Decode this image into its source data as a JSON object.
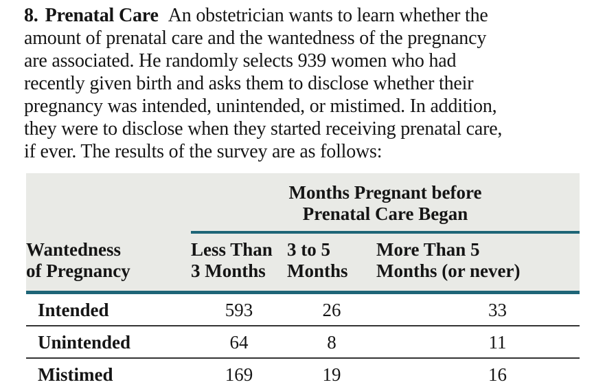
{
  "problem": {
    "number": "8.",
    "title": "Prenatal Care",
    "line1_rest": "An obstetrician wants to learn whether the",
    "lines": [
      "amount of prenatal care and the wantedness of the pregnancy",
      "are associated. He randomly selects 939 women who had",
      "recently given birth and asks them to disclose whether their",
      "pregnancy was intended, unintended, or mistimed. In addition,",
      "they were to disclose when they started receiving prenatal care,",
      "if ever. The results of the survey are as follows:"
    ]
  },
  "table": {
    "spanner": {
      "line1": "Months Pregnant before",
      "line2": "Prenatal Care Began"
    },
    "row_header": {
      "line1": "Wantedness",
      "line2": "of Pregnancy"
    },
    "columns": [
      {
        "line1": "Less Than",
        "line2": "3 Months"
      },
      {
        "line1": "3 to 5",
        "line2": "Months"
      },
      {
        "line1": "More Than 5",
        "line2": "Months (or never)"
      }
    ],
    "rows": [
      {
        "label": "Intended",
        "values": [
          "593",
          "26",
          "33"
        ]
      },
      {
        "label": "Unintended",
        "values": [
          "64",
          "8",
          "11"
        ]
      },
      {
        "label": "Mistimed",
        "values": [
          "169",
          "19",
          "16"
        ]
      }
    ]
  },
  "colors": {
    "header_bg": "#e9eae6",
    "rule_teal": "#1e6577",
    "rule_dark": "#333333",
    "rule_blue": "#2f6a9e",
    "text": "#151515"
  }
}
